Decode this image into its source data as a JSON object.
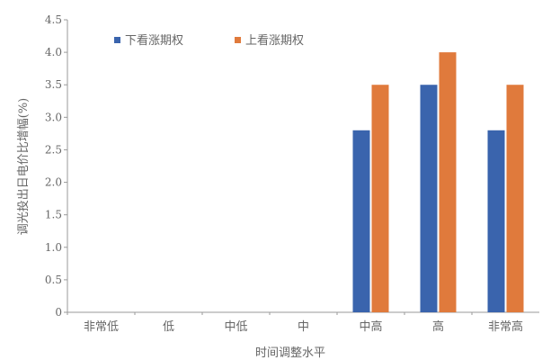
{
  "chart_data": {
    "type": "bar",
    "title": "",
    "xlabel": "时间调整水平",
    "ylabel": "调光投出日电价比增幅(%)",
    "categories": [
      "非常低",
      "低",
      "中低",
      "中",
      "中高",
      "高",
      "非常高"
    ],
    "series": [
      {
        "name": "下看涨期权",
        "color": "#3a64ad",
        "values": [
          0,
          0,
          0,
          0,
          2.8,
          3.5,
          2.8
        ]
      },
      {
        "name": "上看涨期权",
        "color": "#e07a3c",
        "values": [
          0,
          0,
          0,
          0,
          3.5,
          4.0,
          3.5
        ]
      }
    ],
    "ylim": [
      0,
      4.5
    ],
    "yticks": [
      "0",
      "0.5",
      "1.0",
      "1.5",
      "2.0",
      "2.5",
      "3.0",
      "3.5",
      "4.0",
      "4.5"
    ],
    "grid": false,
    "legend": "top-left"
  },
  "colors": {
    "axis": "#9a9a9a",
    "text": "#666666"
  }
}
